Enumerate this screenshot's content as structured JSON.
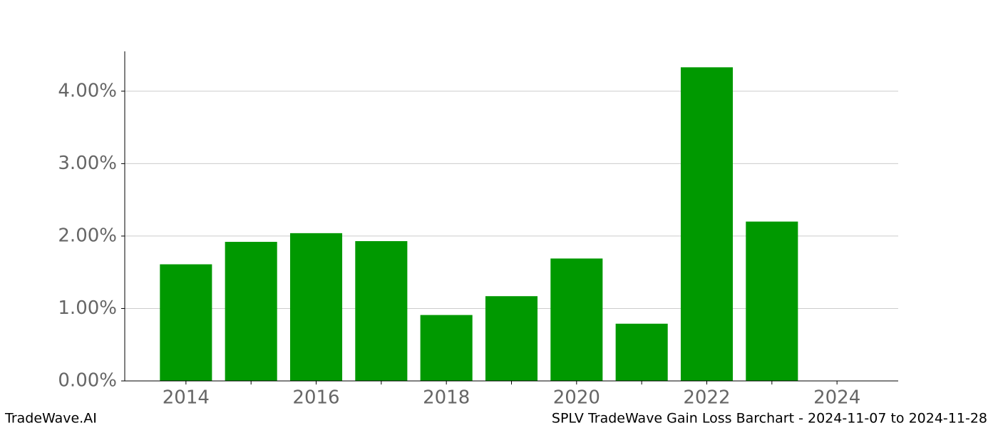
{
  "chart_data": {
    "type": "bar",
    "title": "SPLV TradeWave Gain Loss Barchart - 2024-11-07 to 2024-11-28",
    "watermark": "TradeWave.AI",
    "x": [
      2014,
      2015,
      2016,
      2017,
      2018,
      2019,
      2020,
      2021,
      2022,
      2023,
      2024
    ],
    "values": [
      1.61,
      1.92,
      2.04,
      1.93,
      0.91,
      1.17,
      1.69,
      0.79,
      4.33,
      2.2,
      0
    ],
    "color": "#009900",
    "bar_width": 0.8,
    "xlim": [
      2013.06,
      2024.94
    ],
    "xticks": [
      2014,
      2016,
      2018,
      2020,
      2022,
      2024
    ],
    "xminorticks": [
      2015,
      2017,
      2019,
      2021,
      2023
    ],
    "ylim": [
      0,
      4.55
    ],
    "yticks": [
      {
        "value": 0,
        "label": "0.00%"
      },
      {
        "value": 1,
        "label": "1.00%"
      },
      {
        "value": 2,
        "label": "2.00%"
      },
      {
        "value": 3,
        "label": "3.00%"
      },
      {
        "value": 4,
        "label": "4.00%"
      }
    ],
    "grid": true
  }
}
